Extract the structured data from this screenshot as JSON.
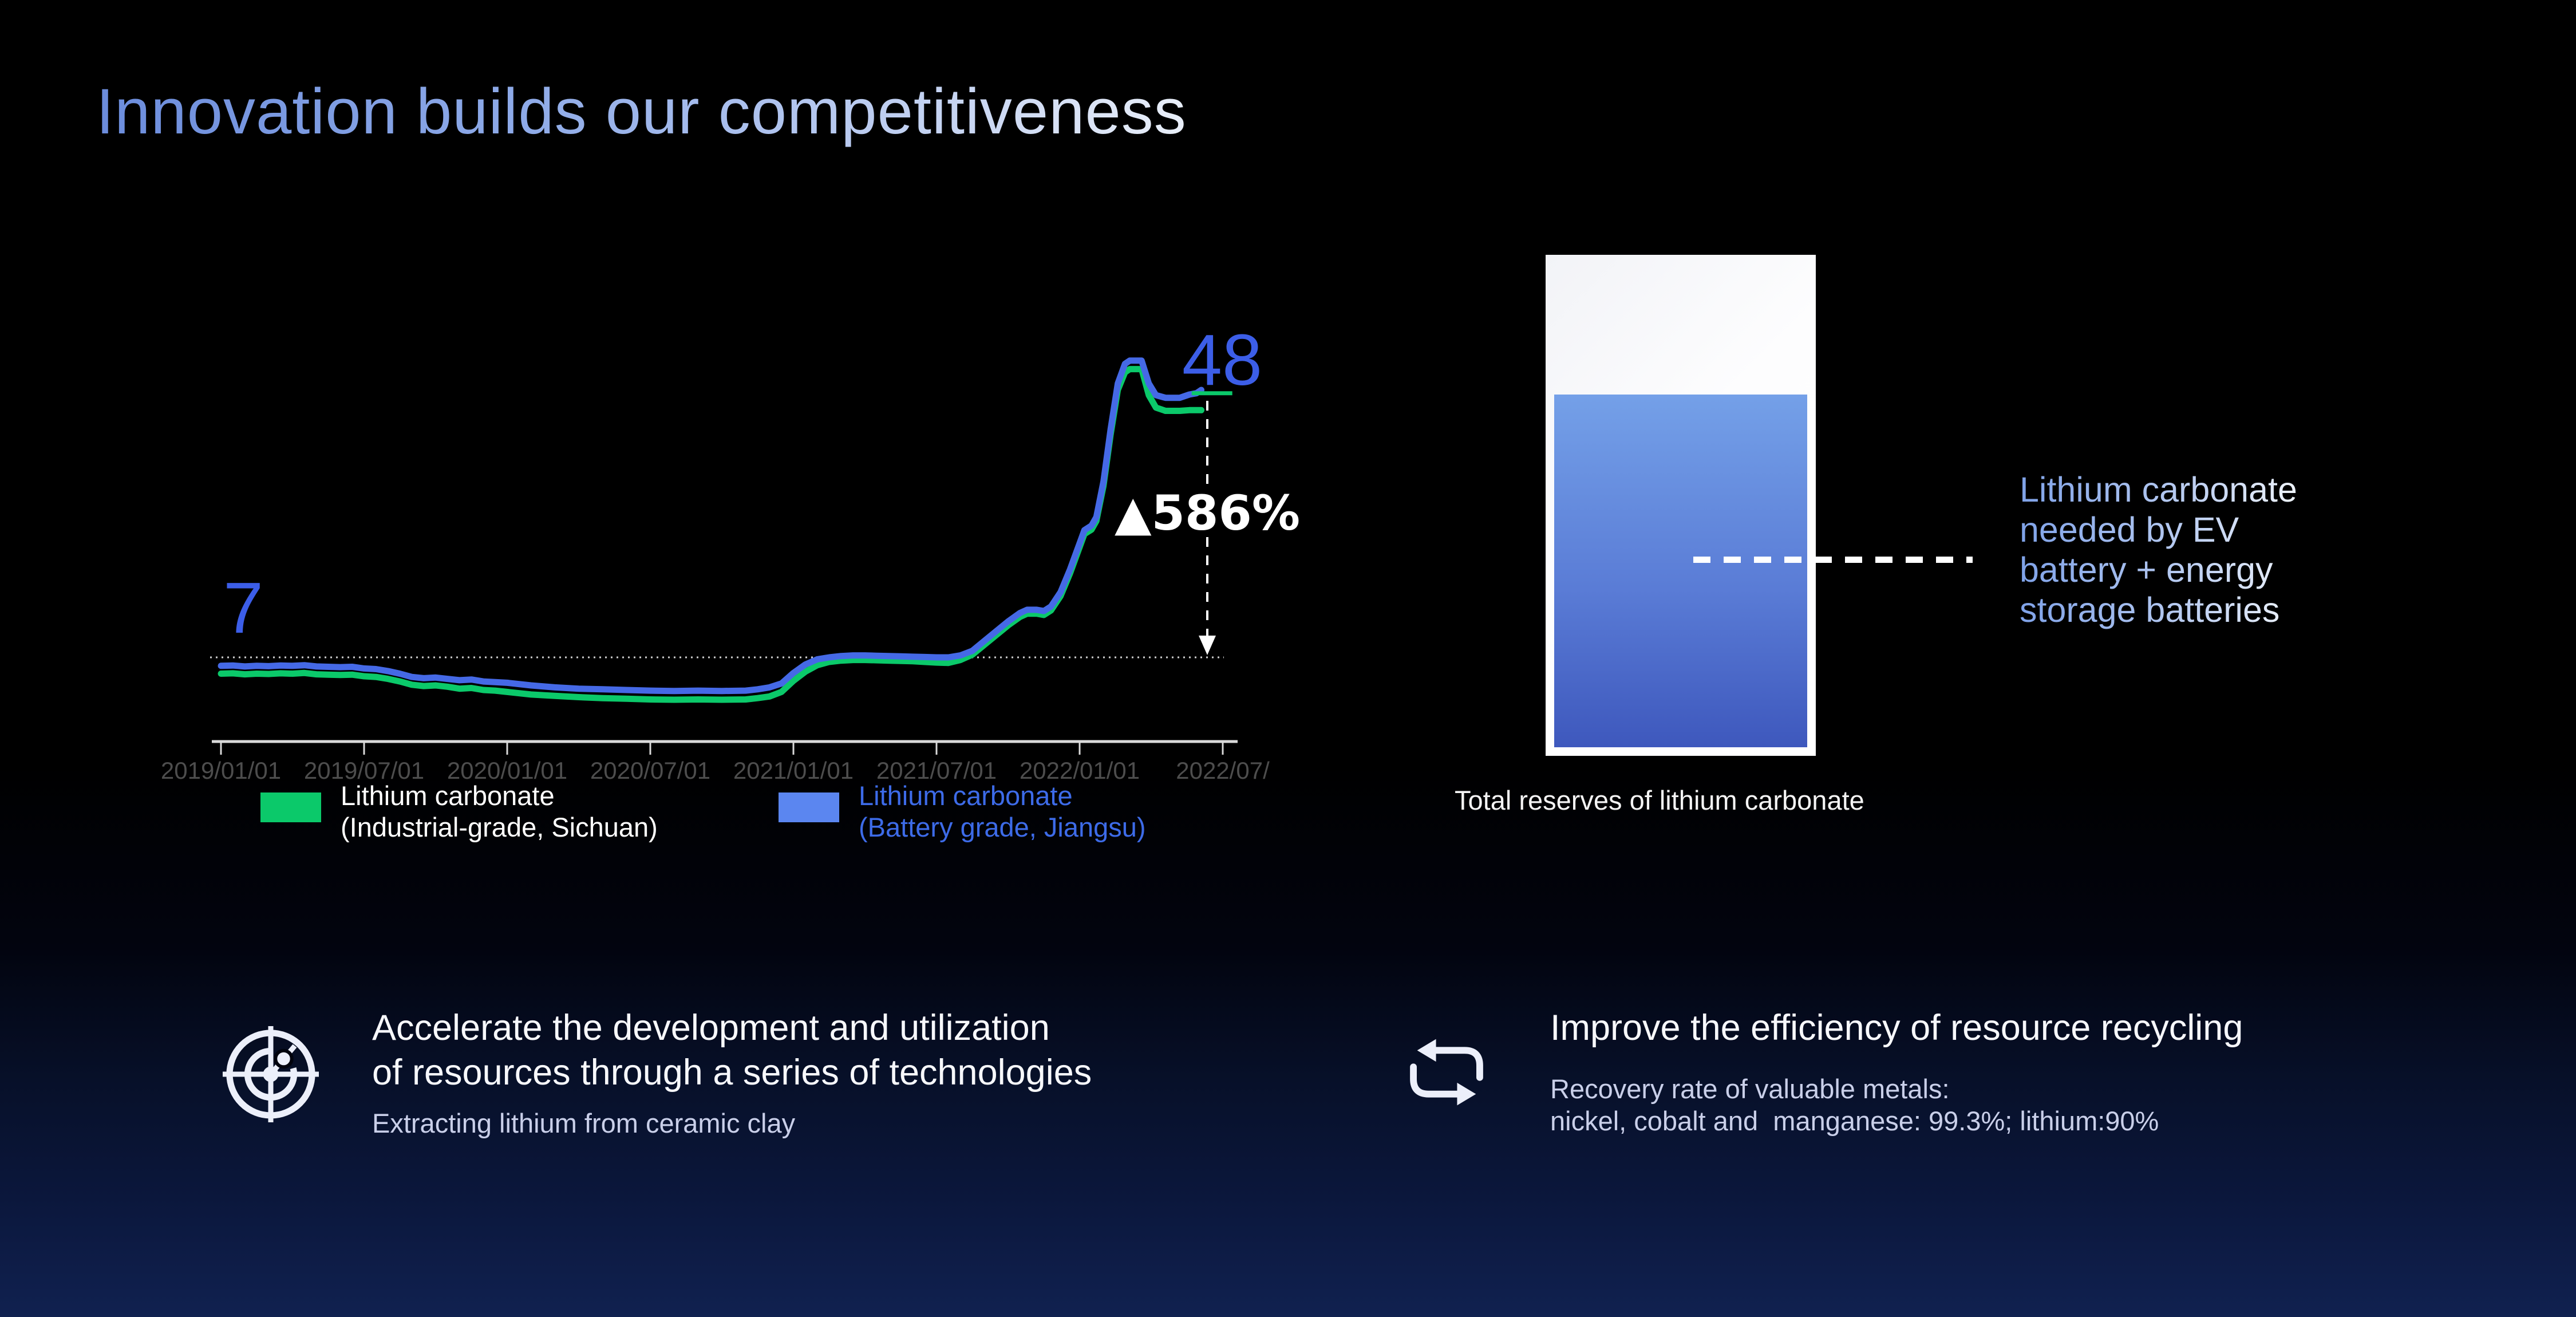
{
  "slide": {
    "title": "Innovation builds our competitiveness"
  },
  "colors": {
    "accent_number_blue": "#3c5ee8",
    "line_green": "#0bc96a",
    "line_blue": "#4569e6",
    "legend_blue_text": "#3d6be8",
    "tank_fill_top": "#74a0e8",
    "tank_fill_bottom": "#3e58bd",
    "title_gradient_start": "#6b8cdc",
    "title_gradient_end": "#e9eff9"
  },
  "chart": {
    "start_label": "7",
    "end_label": "48",
    "change_label": "▲586%"
  },
  "chart_data": {
    "type": "line",
    "x_axis": {
      "tick_months": [
        0,
        6,
        12,
        18,
        24,
        30,
        36,
        42
      ],
      "tick_labels": [
        "2019/01/01",
        "2019/07/01",
        "2020/01/01",
        "2020/07/01",
        "2021/01/01",
        "2021/07/01",
        "2022/01/01",
        "2022/07/"
      ]
    },
    "baseline_value": 7,
    "start_value": 7,
    "end_value": 48,
    "change_pct": "586%",
    "series": [
      {
        "name": "Lithium carbonate (Industrial-grade, Sichuan)",
        "color": "#0bc96a",
        "points": [
          [
            0,
            4.5
          ],
          [
            0.5,
            4.55
          ],
          [
            1,
            4.4
          ],
          [
            1.5,
            4.5
          ],
          [
            2,
            4.45
          ],
          [
            2.5,
            4.55
          ],
          [
            3,
            4.5
          ],
          [
            3.5,
            4.6
          ],
          [
            4,
            4.4
          ],
          [
            4.5,
            4.35
          ],
          [
            5,
            4.3
          ],
          [
            5.5,
            4.35
          ],
          [
            6,
            4.1
          ],
          [
            6.5,
            4.0
          ],
          [
            7,
            3.7
          ],
          [
            7.5,
            3.3
          ],
          [
            8,
            2.8
          ],
          [
            8.5,
            2.6
          ],
          [
            9,
            2.7
          ],
          [
            9.5,
            2.5
          ],
          [
            10,
            2.2
          ],
          [
            10.5,
            2.3
          ],
          [
            11,
            2.0
          ],
          [
            11.5,
            1.9
          ],
          [
            12,
            1.7
          ],
          [
            13,
            1.3
          ],
          [
            14,
            1.1
          ],
          [
            15,
            0.9
          ],
          [
            16,
            0.75
          ],
          [
            17,
            0.65
          ],
          [
            18,
            0.55
          ],
          [
            19,
            0.5
          ],
          [
            20,
            0.55
          ],
          [
            21,
            0.5
          ],
          [
            22,
            0.55
          ],
          [
            22.5,
            0.75
          ],
          [
            23,
            1.0
          ],
          [
            23.5,
            1.7
          ],
          [
            24,
            3.4
          ],
          [
            24.5,
            4.8
          ],
          [
            25,
            5.8
          ],
          [
            25.5,
            6.3
          ],
          [
            26,
            6.5
          ],
          [
            26.5,
            6.6
          ],
          [
            27,
            6.6
          ],
          [
            27.5,
            6.55
          ],
          [
            28,
            6.5
          ],
          [
            28.5,
            6.45
          ],
          [
            29,
            6.4
          ],
          [
            29.5,
            6.3
          ],
          [
            30,
            6.2
          ],
          [
            30.5,
            6.15
          ],
          [
            31,
            6.6
          ],
          [
            31.5,
            7.4
          ],
          [
            32,
            8.9
          ],
          [
            32.5,
            10.4
          ],
          [
            33,
            11.9
          ],
          [
            33.5,
            13.2
          ],
          [
            33.8,
            13.7
          ],
          [
            34.2,
            13.7
          ],
          [
            34.5,
            13.5
          ],
          [
            34.8,
            14.2
          ],
          [
            35.2,
            16.4
          ],
          [
            35.6,
            19.9
          ],
          [
            36,
            23.9
          ],
          [
            36.2,
            25.9
          ],
          [
            36.5,
            26.6
          ],
          [
            36.7,
            27.9
          ],
          [
            37,
            33.3
          ],
          [
            37.3,
            41.2
          ],
          [
            37.6,
            48
          ],
          [
            37.9,
            50.7
          ],
          [
            38.1,
            51.2
          ],
          [
            38.6,
            51.2
          ],
          [
            38.9,
            47.2
          ],
          [
            39.2,
            45.3
          ],
          [
            39.6,
            44.8
          ],
          [
            40.2,
            44.8
          ],
          [
            40.6,
            44.9
          ],
          [
            40.9,
            44.9
          ],
          [
            41.1,
            44.9
          ]
        ]
      },
      {
        "name": "Lithium carbonate (Battery grade, Jiangsu)",
        "color": "#4569e6",
        "points": [
          [
            0,
            5.7
          ],
          [
            0.5,
            5.75
          ],
          [
            1,
            5.6
          ],
          [
            1.5,
            5.7
          ],
          [
            2,
            5.65
          ],
          [
            2.5,
            5.75
          ],
          [
            3,
            5.7
          ],
          [
            3.5,
            5.8
          ],
          [
            4,
            5.6
          ],
          [
            4.5,
            5.55
          ],
          [
            5,
            5.5
          ],
          [
            5.5,
            5.55
          ],
          [
            6,
            5.3
          ],
          [
            6.5,
            5.2
          ],
          [
            7,
            4.9
          ],
          [
            7.5,
            4.5
          ],
          [
            8,
            4.0
          ],
          [
            8.5,
            3.8
          ],
          [
            9,
            3.9
          ],
          [
            9.5,
            3.7
          ],
          [
            10,
            3.5
          ],
          [
            10.5,
            3.6
          ],
          [
            11,
            3.3
          ],
          [
            11.5,
            3.2
          ],
          [
            12,
            3.1
          ],
          [
            13,
            2.7
          ],
          [
            14,
            2.4
          ],
          [
            15,
            2.2
          ],
          [
            16,
            2.1
          ],
          [
            17,
            2.0
          ],
          [
            18,
            1.9
          ],
          [
            19,
            1.85
          ],
          [
            20,
            1.9
          ],
          [
            21,
            1.85
          ],
          [
            22,
            1.9
          ],
          [
            22.5,
            2.1
          ],
          [
            23,
            2.4
          ],
          [
            23.5,
            3.0
          ],
          [
            24,
            4.6
          ],
          [
            24.5,
            5.9
          ],
          [
            25,
            6.7
          ],
          [
            25.5,
            7.0
          ],
          [
            26,
            7.2
          ],
          [
            26.5,
            7.3
          ],
          [
            27,
            7.3
          ],
          [
            27.5,
            7.25
          ],
          [
            28,
            7.2
          ],
          [
            28.5,
            7.15
          ],
          [
            29,
            7.1
          ],
          [
            29.5,
            7.05
          ],
          [
            30,
            7.0
          ],
          [
            30.5,
            7.0
          ],
          [
            31,
            7.3
          ],
          [
            31.5,
            8.0
          ],
          [
            32,
            9.5
          ],
          [
            32.5,
            11.0
          ],
          [
            33,
            12.5
          ],
          [
            33.5,
            13.8
          ],
          [
            33.8,
            14.3
          ],
          [
            34.2,
            14.3
          ],
          [
            34.5,
            14.1
          ],
          [
            34.8,
            14.8
          ],
          [
            35.2,
            17.0
          ],
          [
            35.6,
            20.5
          ],
          [
            36,
            24.5
          ],
          [
            36.2,
            26.5
          ],
          [
            36.5,
            27.2
          ],
          [
            36.7,
            28.5
          ],
          [
            37,
            34
          ],
          [
            37.3,
            42
          ],
          [
            37.6,
            49
          ],
          [
            37.9,
            52
          ],
          [
            38.1,
            52.5
          ],
          [
            38.6,
            52.5
          ],
          [
            38.9,
            49
          ],
          [
            39.2,
            47.2
          ],
          [
            39.6,
            46.8
          ],
          [
            40.2,
            46.8
          ],
          [
            40.6,
            47.3
          ],
          [
            40.9,
            47.5
          ],
          [
            41.1,
            48
          ]
        ]
      }
    ],
    "green_end_tick": [
      [
        40.7,
        47.5
      ],
      [
        42.4,
        47.5
      ]
    ]
  },
  "legend": {
    "items": [
      {
        "label": "Lithium carbonate\n(Industrial-grade, Sichuan)",
        "color": "#0bc96a",
        "text_color": "#ffffff"
      },
      {
        "label": "Lithium carbonate\n(Battery grade, Jiangsu)",
        "color": "#5b86f0",
        "text_color": "#3d6be8"
      }
    ]
  },
  "reserves": {
    "note": "Lithium carbonate\nneeded by EV\nbattery + energy\nstorage batteries",
    "caption": "Total reserves of lithium carbonate"
  },
  "highlights": {
    "left": {
      "icon": "radar-target-icon",
      "title": "Accelerate the development and utilization\nof resources through a series of technologies",
      "subtitle": "Extracting lithium from ceramic clay"
    },
    "right": {
      "icon": "recycle-loop-icon",
      "title": "Improve the efficiency of resource recycling",
      "subtitle": "Recovery rate of valuable metals:\nnickel, cobalt and  manganese: 99.3%; lithium:90%"
    }
  }
}
